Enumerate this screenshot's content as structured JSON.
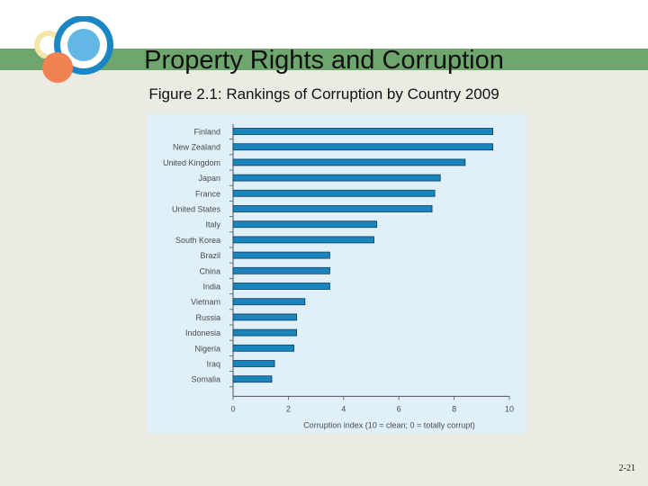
{
  "slide": {
    "title": "Property Rights and Corruption",
    "subtitle": "Figure 2.1: Rankings of Corruption by Country 2009",
    "page_number": "2-21"
  },
  "colors": {
    "bar": "#1c84bd",
    "bar_border": "#0d3f5e",
    "chart_background": "#dff0f9",
    "header_band": "#6fa66e",
    "slide_background": "#ecebe3"
  },
  "chart_data": {
    "type": "bar",
    "orientation": "horizontal",
    "categories": [
      "Finland",
      "New Zealand",
      "United Kingdom",
      "Japan",
      "France",
      "United States",
      "Italy",
      "South Korea",
      "Brazil",
      "China",
      "India",
      "Vietnam",
      "Russia",
      "Indonesia",
      "Nigeria",
      "Iraq",
      "Somalia"
    ],
    "values": [
      9.4,
      9.4,
      8.4,
      7.5,
      7.3,
      7.2,
      5.2,
      5.1,
      3.5,
      3.5,
      3.5,
      2.6,
      2.3,
      2.3,
      2.2,
      1.5,
      1.4
    ],
    "xlabel": "Corruption index (10 = clean; 0 = totally corrupt)",
    "xlim": [
      0,
      10
    ],
    "xticks": [
      "0",
      "2",
      "4",
      "6",
      "8",
      "10"
    ],
    "grid": false
  }
}
